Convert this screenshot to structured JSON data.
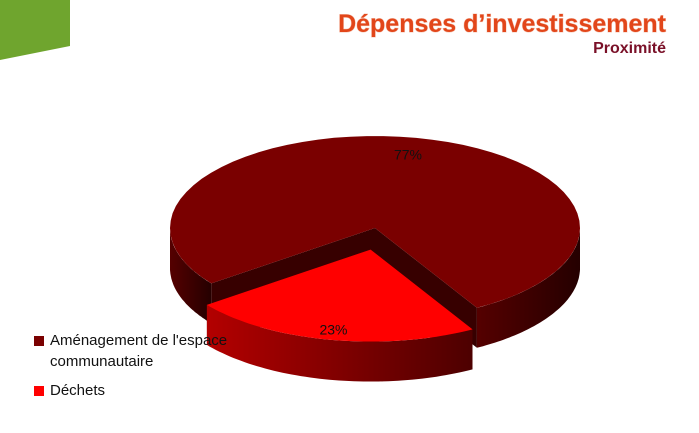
{
  "chart_data": {
    "type": "pie",
    "title": "Dépenses d’investissement",
    "subtitle": "Proximité",
    "categories": [
      "Aménagement de l'espace communautaire",
      "Déchets"
    ],
    "values": [
      77,
      23
    ],
    "value_labels": [
      "77%",
      "23%"
    ],
    "colors": [
      "#7a0000",
      "#ff0000"
    ],
    "legend": "left"
  }
}
